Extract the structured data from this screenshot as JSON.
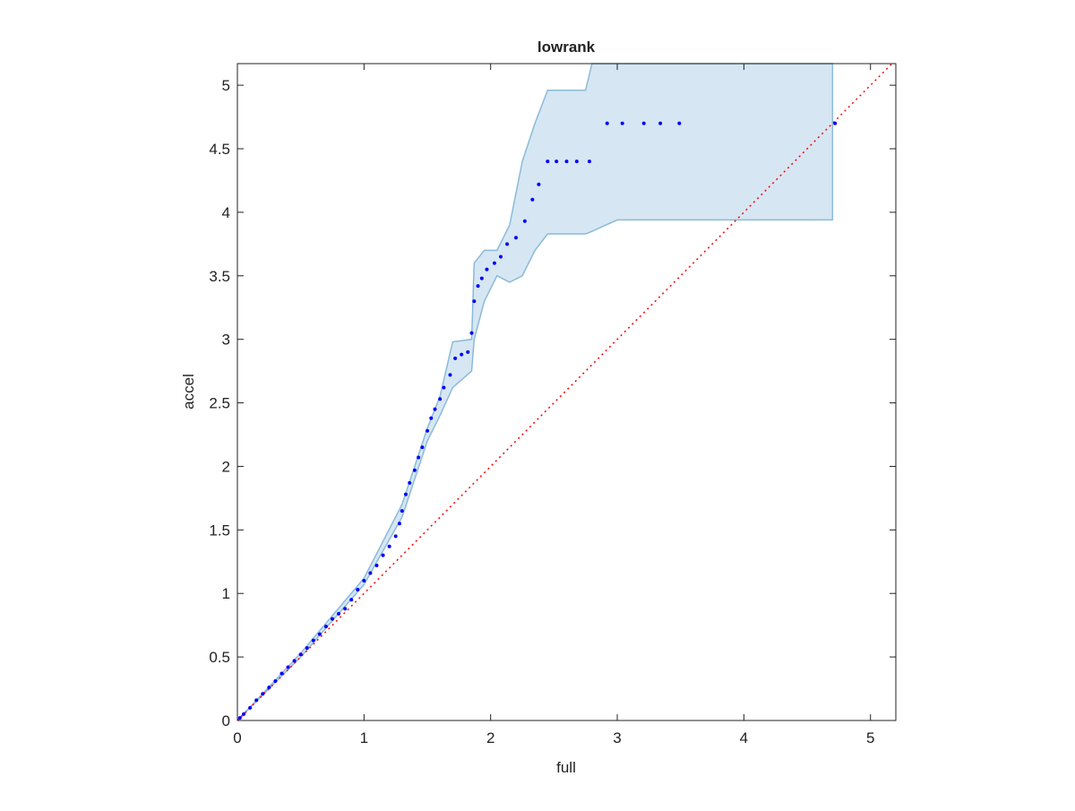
{
  "chart_data": {
    "type": "scatter",
    "title": "lowrank",
    "x_label": "full",
    "y_label": "accel",
    "xlim": [
      0,
      5.2
    ],
    "ylim": [
      0,
      5.17
    ],
    "xticks": [
      0,
      1,
      2,
      3,
      4,
      5
    ],
    "yticks": [
      0,
      0.5,
      1,
      1.5,
      2,
      2.5,
      3,
      3.5,
      4,
      4.5,
      5
    ],
    "series": [
      {
        "color": "#0000ff",
        "x": [
          0.02,
          0.05,
          0.1,
          0.15,
          0.2,
          0.25,
          0.3,
          0.35,
          0.4,
          0.45,
          0.5,
          0.55,
          0.6,
          0.65,
          0.7,
          0.75,
          0.8,
          0.85,
          0.9,
          0.95,
          1.0,
          1.05,
          1.1,
          1.15,
          1.2,
          1.25,
          1.28,
          1.3,
          1.33,
          1.36,
          1.4,
          1.43,
          1.46,
          1.5,
          1.53,
          1.56,
          1.6,
          1.63,
          1.68,
          1.72,
          1.77,
          1.82,
          1.85,
          1.87,
          1.9,
          1.93,
          1.97,
          2.03,
          2.08,
          2.13,
          2.2,
          2.27,
          2.33,
          2.38,
          2.45,
          2.52,
          2.6,
          2.68,
          2.78,
          2.92,
          3.04,
          3.21,
          3.34,
          3.49,
          4.72
        ],
        "values": [
          0.02,
          0.05,
          0.1,
          0.16,
          0.21,
          0.26,
          0.31,
          0.37,
          0.42,
          0.47,
          0.52,
          0.57,
          0.63,
          0.68,
          0.74,
          0.8,
          0.84,
          0.88,
          0.95,
          1.03,
          1.1,
          1.16,
          1.22,
          1.3,
          1.37,
          1.45,
          1.55,
          1.65,
          1.78,
          1.87,
          1.97,
          2.07,
          2.15,
          2.28,
          2.38,
          2.45,
          2.53,
          2.62,
          2.72,
          2.85,
          2.88,
          2.9,
          3.05,
          3.3,
          3.42,
          3.48,
          3.55,
          3.6,
          3.65,
          3.75,
          3.8,
          3.93,
          4.1,
          4.22,
          4.4,
          4.4,
          4.4,
          4.4,
          4.4,
          4.7,
          4.7,
          4.7,
          4.7,
          4.7,
          4.7
        ]
      }
    ],
    "band": {
      "color": "#d6e7f3",
      "edge_color": "#8bbad9",
      "x": [
        0,
        0.5,
        1,
        1.3,
        1.5,
        1.6,
        1.7,
        1.85,
        1.87,
        1.95,
        2.05,
        2.15,
        2.25,
        2.35,
        2.45,
        2.75,
        2.8,
        3.0,
        4.7
      ],
      "lower": [
        0,
        0.5,
        1.07,
        1.6,
        2.2,
        2.4,
        2.62,
        2.75,
        3.0,
        3.3,
        3.5,
        3.45,
        3.5,
        3.7,
        3.83,
        3.83,
        3.85,
        3.94,
        3.94
      ],
      "upper": [
        0,
        0.53,
        1.12,
        1.7,
        2.3,
        2.55,
        2.98,
        3.0,
        3.6,
        3.7,
        3.7,
        3.9,
        4.4,
        4.7,
        4.96,
        4.96,
        5.17,
        5.17,
        5.17
      ]
    },
    "reference_line": {
      "color": "#ff0000",
      "style": "dotted"
    }
  }
}
